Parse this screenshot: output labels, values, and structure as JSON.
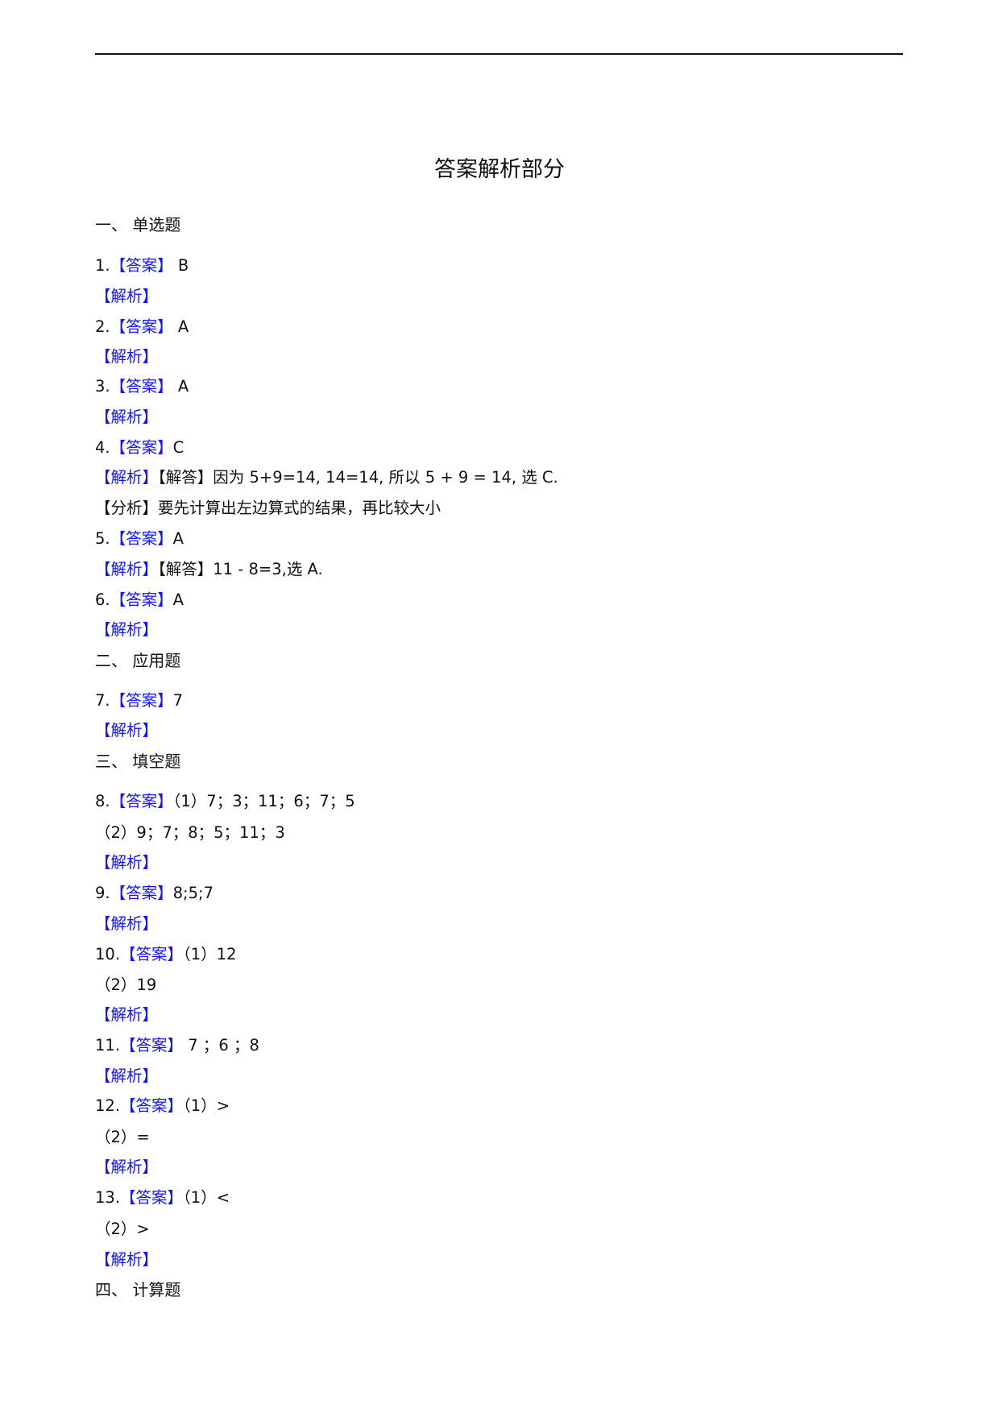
{
  "title": "答案解析部分",
  "colors": {
    "tag": "#1414ff",
    "text": "#111111"
  },
  "lines": [
    {
      "kind": "heading",
      "text": "一、 单选题"
    },
    {
      "pre": "1.",
      "tag": "【答案】",
      "text": " B"
    },
    {
      "tag": "【解析】"
    },
    {
      "pre": "2.",
      "tag": "【答案】",
      "text": " A"
    },
    {
      "tag": "【解析】"
    },
    {
      "pre": "3.",
      "tag": "【答案】",
      "text": " A"
    },
    {
      "tag": "【解析】"
    },
    {
      "pre": "4.",
      "tag": "【答案】",
      "text": "C"
    },
    {
      "tag": "【解析】",
      "text": "【解答】因为 5+9=14, 14=14, 所以 5 + 9 = 14, 选 C."
    },
    {
      "text": "【分析】要先计算出左边算式的结果，再比较大小"
    },
    {
      "pre": "5.",
      "tag": "【答案】",
      "text": "A"
    },
    {
      "tag": "【解析】",
      "text": "【解答】11 - 8=3,选 A."
    },
    {
      "pre": "6.",
      "tag": "【答案】",
      "text": "A"
    },
    {
      "tag": "【解析】"
    },
    {
      "kind": "heading",
      "text": "二、 应用题"
    },
    {
      "pre": "7.",
      "tag": "【答案】",
      "text": "7"
    },
    {
      "tag": "【解析】"
    },
    {
      "kind": "heading",
      "text": "三、 填空题"
    },
    {
      "pre": "8.",
      "tag": "【答案】",
      "text": "（1）7；3；11；6；7；5"
    },
    {
      "text": "（2）9；7；8；5；11；3"
    },
    {
      "tag": "【解析】"
    },
    {
      "pre": "9.",
      "tag": "【答案】",
      "text": "8;5;7"
    },
    {
      "tag": "【解析】"
    },
    {
      "pre": "10.",
      "tag": "【答案】",
      "text": "（1）12"
    },
    {
      "text": "（2）19"
    },
    {
      "tag": "【解析】"
    },
    {
      "pre": "11.",
      "tag": "【答案】",
      "text": " 7 ；6 ；8"
    },
    {
      "tag": "【解析】"
    },
    {
      "pre": "12.",
      "tag": "【答案】",
      "text": "（1）>"
    },
    {
      "text": "（2）="
    },
    {
      "tag": "【解析】"
    },
    {
      "pre": "13.",
      "tag": "【答案】",
      "text": "（1）<"
    },
    {
      "text": "（2）>"
    },
    {
      "tag": "【解析】"
    },
    {
      "kind": "heading",
      "text": "四、 计算题"
    }
  ]
}
